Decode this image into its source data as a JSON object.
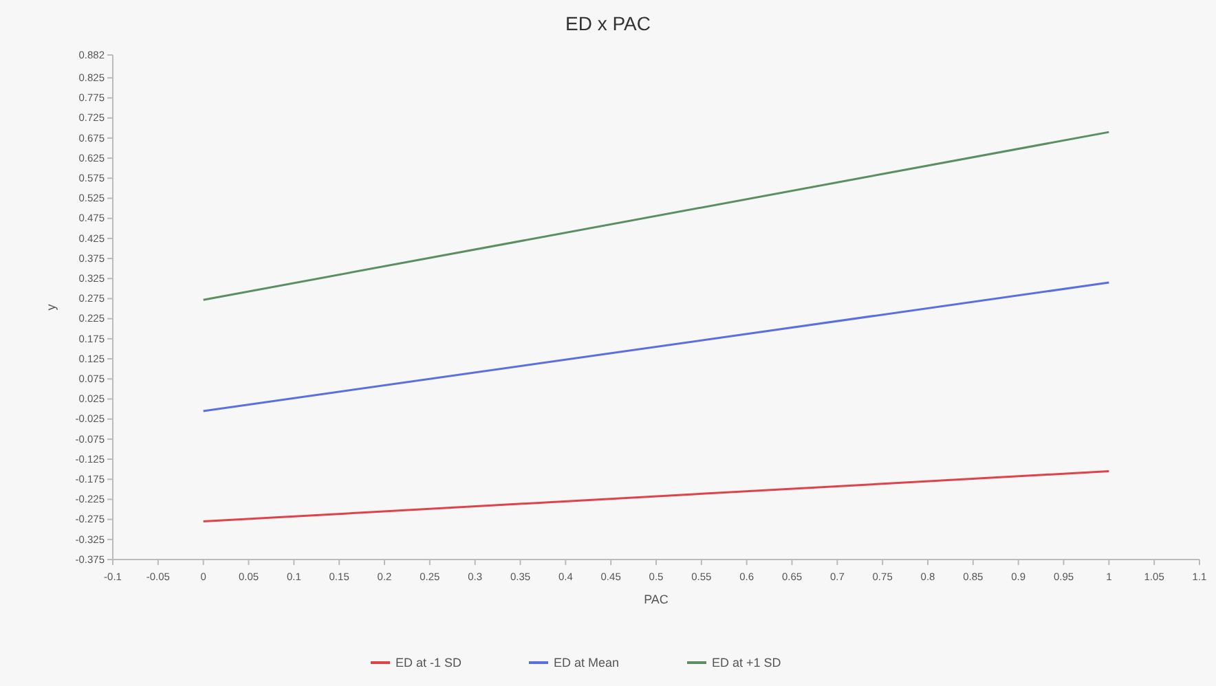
{
  "chart_data": {
    "type": "line",
    "title": "ED x PAC",
    "xlabel": "PAC",
    "ylabel": "y",
    "x": [
      0,
      1
    ],
    "series": [
      {
        "name": "ED at -1 SD",
        "color": "#e0424a",
        "values": [
          -0.28,
          -0.155
        ]
      },
      {
        "name": "ED at Mean",
        "color": "#5a6fe0",
        "values": [
          -0.005,
          0.315
        ]
      },
      {
        "name": "ED at +1 SD",
        "color": "#5b8f62",
        "values": [
          0.272,
          0.69
        ]
      }
    ],
    "xlim": [
      -0.1,
      1.1
    ],
    "xticks": [
      -0.1,
      -0.05,
      0,
      0.05,
      0.1,
      0.15,
      0.2,
      0.25,
      0.3,
      0.35,
      0.4,
      0.45,
      0.5,
      0.55,
      0.6,
      0.65,
      0.7,
      0.75,
      0.8,
      0.85,
      0.9,
      0.95,
      1,
      1.05,
      1.1
    ],
    "ylim": [
      -0.375,
      0.882
    ],
    "yticks": [
      -0.375,
      -0.325,
      -0.275,
      -0.225,
      -0.175,
      -0.125,
      -0.075,
      -0.025,
      0.025,
      0.075,
      0.125,
      0.175,
      0.225,
      0.275,
      0.325,
      0.375,
      0.425,
      0.475,
      0.525,
      0.575,
      0.625,
      0.675,
      0.725,
      0.775,
      0.825,
      0.882
    ],
    "grid": false,
    "legend": "bottom",
    "marker": "none",
    "line_style": "solid"
  }
}
